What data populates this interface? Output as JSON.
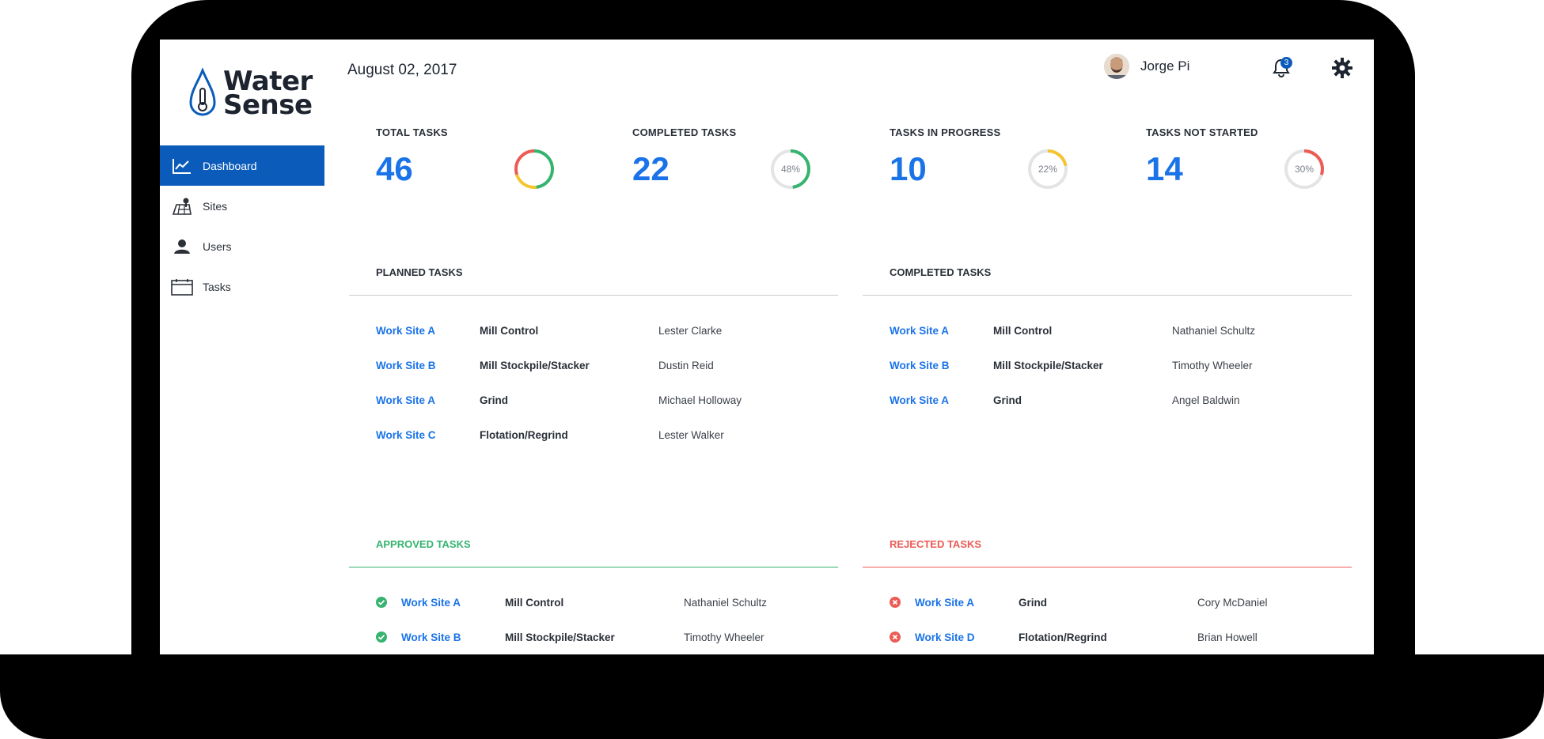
{
  "brand": {
    "line1": "Water",
    "line2": "Sense"
  },
  "sidebar": {
    "items": [
      {
        "label": "Dashboard",
        "icon": "chart-line-icon",
        "active": true
      },
      {
        "label": "Sites",
        "icon": "map-pin-icon",
        "active": false
      },
      {
        "label": "Users",
        "icon": "user-icon",
        "active": false
      },
      {
        "label": "Tasks",
        "icon": "calendar-icon",
        "active": false
      }
    ]
  },
  "header": {
    "date": "August 02, 2017",
    "user_name": "Jorge Pi",
    "notification_count": "3"
  },
  "stats": [
    {
      "label": "TOTAL TASKS",
      "value": "46"
    },
    {
      "label": "COMPLETED TASKS",
      "value": "22",
      "percent_text": "48%",
      "percent": 48,
      "color": "#35b36f"
    },
    {
      "label": "TASKS IN PROGRESS",
      "value": "10",
      "percent_text": "22%",
      "percent": 22,
      "color": "#f5c431"
    },
    {
      "label": "TASKS NOT STARTED",
      "value": "14",
      "percent_text": "30%",
      "percent": 30,
      "color": "#ec5b55"
    }
  ],
  "planned": {
    "title": "PLANNED TASKS",
    "rows": [
      {
        "site": "Work Site A",
        "task": "Mill Control",
        "person": "Lester Clarke"
      },
      {
        "site": "Work Site B",
        "task": "Mill Stockpile/Stacker",
        "person": "Dustin Reid"
      },
      {
        "site": "Work Site A",
        "task": "Grind",
        "person": "Michael Holloway"
      },
      {
        "site": "Work Site C",
        "task": "Flotation/Regrind",
        "person": "Lester Walker"
      }
    ]
  },
  "completed": {
    "title": "COMPLETED TASKS",
    "rows": [
      {
        "site": "Work Site A",
        "task": "Mill Control",
        "person": "Nathaniel Schultz"
      },
      {
        "site": "Work Site B",
        "task": "Mill Stockpile/Stacker",
        "person": "Timothy Wheeler"
      },
      {
        "site": "Work Site A",
        "task": "Grind",
        "person": "Angel Baldwin"
      }
    ]
  },
  "approved": {
    "title": "APPROVED TASKS",
    "color": "#35b36f",
    "rows": [
      {
        "site": "Work Site A",
        "task": "Mill Control",
        "person": "Nathaniel Schultz"
      },
      {
        "site": "Work Site B",
        "task": "Mill Stockpile/Stacker",
        "person": "Timothy Wheeler"
      }
    ]
  },
  "rejected": {
    "title": "REJECTED TASKS",
    "color": "#ec5b55",
    "rows": [
      {
        "site": "Work Site A",
        "task": "Grind",
        "person": "Cory McDaniel"
      },
      {
        "site": "Work Site D",
        "task": "Flotation/Regrind",
        "person": "Brian Howell"
      }
    ]
  },
  "colors": {
    "primary": "#0b5cba",
    "link": "#1a73e8"
  }
}
